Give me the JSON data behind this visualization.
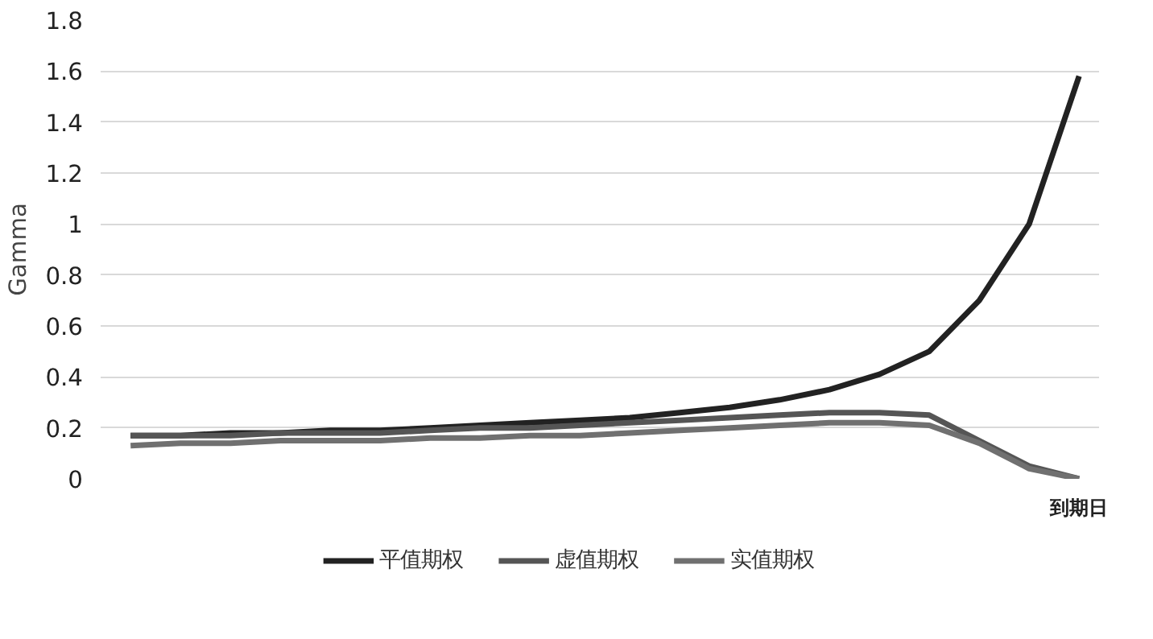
{
  "chart_data": {
    "type": "line",
    "ylabel": "Gamma",
    "categories": [
      null,
      null,
      null,
      null,
      null,
      null,
      null,
      null,
      null,
      null,
      null,
      null,
      null,
      null,
      null,
      null,
      null,
      null,
      null,
      "到期日"
    ],
    "series": [
      {
        "name": "平值期权",
        "color": "#222222",
        "values": [
          0.17,
          0.17,
          0.18,
          0.18,
          0.19,
          0.19,
          0.2,
          0.21,
          0.22,
          0.23,
          0.24,
          0.26,
          0.28,
          0.31,
          0.35,
          0.41,
          0.5,
          0.7,
          1.0,
          1.58
        ]
      },
      {
        "name": "虚值期权",
        "color": "#555555",
        "values": [
          0.17,
          0.17,
          0.17,
          0.18,
          0.18,
          0.18,
          0.19,
          0.2,
          0.2,
          0.21,
          0.22,
          0.23,
          0.24,
          0.25,
          0.26,
          0.26,
          0.25,
          0.15,
          0.05,
          0.0
        ]
      },
      {
        "name": "实值期权",
        "color": "#707070",
        "values": [
          0.13,
          0.14,
          0.14,
          0.15,
          0.15,
          0.15,
          0.16,
          0.16,
          0.17,
          0.17,
          0.18,
          0.19,
          0.2,
          0.21,
          0.22,
          0.22,
          0.21,
          0.14,
          0.04,
          0.0
        ]
      }
    ],
    "ylim": [
      0,
      1.8
    ],
    "yticks": [
      0,
      0.2,
      0.4,
      0.6,
      0.8,
      1,
      1.2,
      1.4,
      1.6,
      1.8
    ],
    "grid": "y",
    "legend": "bottom",
    "line_style": "solid"
  }
}
